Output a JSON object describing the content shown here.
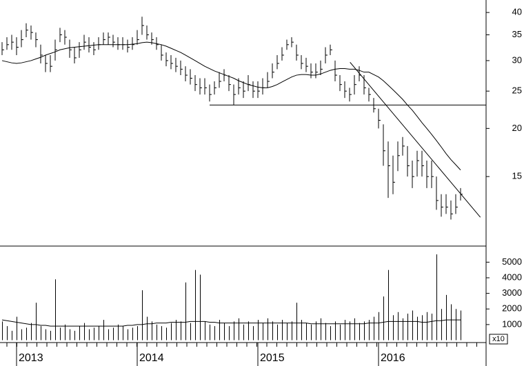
{
  "chart_data": [
    {
      "type": "ohlc",
      "log": true,
      "color": "#000000",
      "ylim": [
        9.9,
        43.1
      ],
      "yticks": [
        15,
        20,
        25,
        30,
        35,
        40
      ],
      "close": [
        32,
        33,
        33.5,
        32.5,
        34,
        36,
        35.5,
        34,
        31,
        29.5,
        29,
        32,
        35,
        34.5,
        32,
        30.5,
        32,
        33.5,
        32.5,
        32,
        33,
        34,
        34.5,
        33.5,
        33,
        33,
        32.5,
        33,
        34,
        37,
        35,
        34,
        33,
        31,
        30,
        29.5,
        29,
        28.5,
        27.5,
        27,
        26,
        25.5,
        25.5,
        24.5,
        25.5,
        26.5,
        27.5,
        26,
        24.5,
        25.5,
        25,
        26,
        25,
        25,
        25.5,
        26.5,
        28,
        29.5,
        31,
        33,
        33.5,
        31,
        29.5,
        29,
        28,
        28,
        28.5,
        31,
        32,
        27.5,
        26,
        25,
        24.5,
        26,
        27.5,
        25.5,
        24.5,
        22.5,
        21,
        17.5,
        16,
        14.5,
        17,
        18,
        16,
        15,
        16.5,
        16,
        15,
        15,
        13,
        12.5,
        12.5,
        12,
        12.5,
        13.5
      ],
      "high": [
        33.5,
        34.5,
        35,
        34.5,
        36,
        37.5,
        37,
        35.5,
        33,
        31,
        31,
        34,
        36.5,
        36,
        34,
        32.5,
        33.5,
        35,
        34.5,
        33.5,
        34.5,
        35.5,
        35.5,
        35,
        34.5,
        34.5,
        34,
        34.5,
        36,
        39,
        37,
        35.5,
        34.5,
        33,
        31.5,
        31,
        30.5,
        30,
        29,
        28.5,
        27.5,
        27,
        27,
        26,
        26.5,
        28,
        28.5,
        27.5,
        26,
        27,
        26.5,
        27.5,
        26.5,
        26.5,
        27,
        28,
        29.5,
        31,
        32.5,
        34,
        34.5,
        33,
        31,
        30.5,
        29.5,
        29.5,
        30,
        32.5,
        33,
        30,
        27.5,
        26.5,
        25.5,
        27.5,
        29,
        27.5,
        25.5,
        24,
        22.5,
        20.5,
        18.5,
        17,
        18.5,
        19,
        18,
        16.5,
        17.5,
        17.5,
        16.5,
        16.5,
        15,
        13.5,
        13.5,
        13,
        13.5,
        14
      ],
      "low": [
        31,
        32,
        32,
        31,
        32.5,
        34.5,
        34,
        32.5,
        29.5,
        28,
        28,
        30,
        33.5,
        33,
        30.5,
        29.5,
        30.5,
        32,
        31.5,
        31,
        32,
        33,
        33,
        32.5,
        32,
        32,
        31.5,
        32,
        33,
        35,
        34,
        33,
        32,
        30,
        29,
        28.5,
        28,
        27.5,
        26.5,
        26,
        25,
        24.5,
        24.5,
        23.5,
        24.5,
        25.5,
        26.5,
        25,
        23,
        24.5,
        24,
        25,
        24,
        24,
        24.5,
        25.5,
        27,
        28.5,
        30,
        32,
        32.5,
        30,
        28.5,
        28,
        27,
        27,
        27.5,
        29.5,
        31,
        26.5,
        25,
        24,
        23.5,
        24.5,
        26.5,
        24.5,
        23.5,
        22,
        20,
        16,
        13.2,
        13.5,
        15.5,
        17,
        15,
        14,
        15,
        15,
        14,
        14,
        12.3,
        11.8,
        12,
        11.6,
        12,
        13
      ],
      "ma": [
        30,
        29.8,
        29.6,
        29.5,
        29.6,
        29.8,
        30,
        30.3,
        30.6,
        31,
        31.3,
        31.6,
        32,
        32.2,
        32.4,
        32.5,
        32.6,
        32.7,
        32.8,
        32.9,
        33,
        33,
        33,
        33,
        33,
        33,
        33,
        33.1,
        33.2,
        33.4,
        33.5,
        33.4,
        33.2,
        33,
        32.7,
        32.3,
        31.9,
        31.5,
        31,
        30.5,
        30,
        29.5,
        29,
        28.6,
        28.2,
        27.9,
        27.6,
        27.3,
        27,
        26.6,
        26.3,
        26,
        25.8,
        25.6,
        25.5,
        25.5,
        25.7,
        26,
        26.4,
        26.8,
        27.2,
        27.5,
        27.6,
        27.6,
        27.5,
        27.5,
        27.7,
        28,
        28.3,
        28.5,
        28.6,
        28.6,
        28.5,
        28.5,
        28.3,
        28,
        28,
        27.6,
        27.2,
        26.6,
        25.9,
        25.2,
        24.5,
        23.8,
        23,
        22.3,
        21.5,
        20.7,
        20,
        19.3,
        18.6,
        17.9,
        17.2,
        16.6,
        16.1,
        15.6
      ],
      "hline": {
        "value": 23,
        "from": 43
      },
      "trendline": {
        "x": [
          72.1,
          99.1
        ],
        "values": [
          29.7,
          11.76
        ]
      }
    },
    {
      "type": "volume",
      "color": "#000000",
      "unit_label": "x10",
      "ylim": [
        0,
        5900
      ],
      "yticks": [
        1000,
        2000,
        3000,
        4000,
        5000
      ],
      "categories": [
        null,
        null,
        null,
        "2013",
        null,
        null,
        null,
        null,
        null,
        null,
        null,
        null,
        null,
        null,
        null,
        null,
        null,
        null,
        null,
        null,
        null,
        null,
        null,
        null,
        null,
        null,
        null,
        null,
        "2014",
        null,
        null,
        null,
        null,
        null,
        null,
        null,
        null,
        null,
        null,
        null,
        null,
        null,
        null,
        null,
        null,
        null,
        null,
        null,
        null,
        null,
        null,
        null,
        null,
        "2015",
        null,
        null,
        null,
        null,
        null,
        null,
        null,
        null,
        null,
        null,
        null,
        null,
        null,
        null,
        null,
        null,
        null,
        null,
        null,
        null,
        null,
        null,
        null,
        null,
        "2016",
        null,
        null,
        null,
        null,
        null,
        null,
        null,
        null,
        null,
        null,
        null,
        null,
        null,
        null,
        null,
        null,
        null
      ],
      "values": [
        1200,
        900,
        600,
        1500,
        700,
        800,
        1100,
        2400,
        900,
        700,
        600,
        3900,
        800,
        1000,
        700,
        600,
        900,
        1100,
        700,
        800,
        900,
        1300,
        700,
        800,
        1000,
        900,
        700,
        800,
        900,
        3200,
        1500,
        1200,
        1000,
        900,
        800,
        1100,
        1300,
        1200,
        3700,
        1100,
        4500,
        4200,
        1200,
        1000,
        900,
        1300,
        1100,
        900,
        1200,
        1400,
        1000,
        1200,
        900,
        1300,
        1100,
        1400,
        1200,
        1000,
        1300,
        1100,
        1200,
        2400,
        1300,
        1100,
        1000,
        1200,
        1400,
        1100,
        900,
        1200,
        1000,
        1300,
        1200,
        1400,
        1100,
        1200,
        1300,
        1500,
        1800,
        2800,
        4500,
        1600,
        1800,
        1400,
        1700,
        1900,
        1500,
        1600,
        1800,
        1700,
        5500,
        2000,
        2900,
        2300,
        2000,
        1900
      ],
      "ma": [
        1300,
        1250,
        1200,
        1150,
        1100,
        1050,
        1000,
        1000,
        950,
        950,
        900,
        900,
        900,
        900,
        900,
        900,
        900,
        900,
        900,
        900,
        900,
        900,
        900,
        900,
        900,
        900,
        950,
        950,
        1000,
        1000,
        1050,
        1050,
        1100,
        1100,
        1100,
        1150,
        1150,
        1150,
        1150,
        1200,
        1200,
        1200,
        1200,
        1150,
        1150,
        1100,
        1100,
        1100,
        1100,
        1100,
        1100,
        1100,
        1100,
        1100,
        1100,
        1100,
        1100,
        1100,
        1100,
        1100,
        1100,
        1100,
        1100,
        1100,
        1050,
        1050,
        1050,
        1050,
        1050,
        1050,
        1050,
        1050,
        1050,
        1050,
        1050,
        1050,
        1100,
        1100,
        1100,
        1150,
        1200,
        1200,
        1200,
        1200,
        1200,
        1200,
        1200,
        1150,
        1150,
        1200,
        1250,
        1250,
        1300,
        1300,
        1300,
        1300
      ]
    }
  ]
}
